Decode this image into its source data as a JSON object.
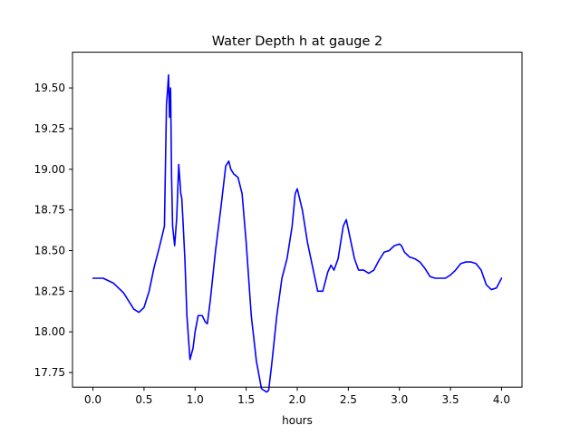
{
  "chart_data": {
    "type": "line",
    "title": "Water Depth h at gauge 2",
    "xlabel": "hours",
    "ylabel": "",
    "xlim": [
      -0.2,
      4.2
    ],
    "ylim": [
      17.66,
      19.72
    ],
    "xticks": [
      0.0,
      0.5,
      1.0,
      1.5,
      2.0,
      2.5,
      3.0,
      3.5,
      4.0
    ],
    "xtick_labels": [
      "0.0",
      "0.5",
      "1.0",
      "1.5",
      "2.0",
      "2.5",
      "3.0",
      "3.5",
      "4.0"
    ],
    "yticks": [
      17.75,
      18.0,
      18.25,
      18.5,
      18.75,
      19.0,
      19.25,
      19.5
    ],
    "ytick_labels": [
      "17.75",
      "18.00",
      "18.25",
      "18.50",
      "18.75",
      "19.00",
      "19.25",
      "19.50"
    ],
    "grid": false,
    "series": [
      {
        "color": "#0000ff",
        "x": [
          0.0,
          0.1,
          0.2,
          0.3,
          0.4,
          0.45,
          0.5,
          0.55,
          0.6,
          0.65,
          0.7,
          0.72,
          0.73,
          0.74,
          0.75,
          0.76,
          0.77,
          0.78,
          0.8,
          0.82,
          0.84,
          0.86,
          0.87,
          0.88,
          0.9,
          0.92,
          0.95,
          0.98,
          1.0,
          1.03,
          1.07,
          1.1,
          1.12,
          1.15,
          1.2,
          1.25,
          1.3,
          1.33,
          1.35,
          1.38,
          1.42,
          1.46,
          1.5,
          1.55,
          1.6,
          1.65,
          1.7,
          1.72,
          1.75,
          1.8,
          1.85,
          1.9,
          1.95,
          1.98,
          2.0,
          2.05,
          2.1,
          2.15,
          2.2,
          2.25,
          2.3,
          2.33,
          2.36,
          2.4,
          2.45,
          2.48,
          2.52,
          2.56,
          2.6,
          2.65,
          2.7,
          2.75,
          2.8,
          2.85,
          2.9,
          2.95,
          3.0,
          3.02,
          3.05,
          3.1,
          3.15,
          3.2,
          3.25,
          3.3,
          3.35,
          3.4,
          3.45,
          3.5,
          3.55,
          3.6,
          3.65,
          3.7,
          3.75,
          3.8,
          3.85,
          3.9,
          3.95,
          4.0
        ],
        "y": [
          18.33,
          18.33,
          18.3,
          18.24,
          18.14,
          18.12,
          18.15,
          18.25,
          18.4,
          18.52,
          18.65,
          19.4,
          19.48,
          19.58,
          19.32,
          19.5,
          18.95,
          18.65,
          18.53,
          18.7,
          19.03,
          18.85,
          18.82,
          18.7,
          18.45,
          18.1,
          17.83,
          17.9,
          18.0,
          18.1,
          18.1,
          18.06,
          18.05,
          18.2,
          18.5,
          18.75,
          19.02,
          19.05,
          19.0,
          18.97,
          18.95,
          18.85,
          18.55,
          18.1,
          17.82,
          17.65,
          17.63,
          17.64,
          17.8,
          18.1,
          18.33,
          18.45,
          18.65,
          18.85,
          18.88,
          18.75,
          18.55,
          18.4,
          18.25,
          18.25,
          18.37,
          18.41,
          18.38,
          18.45,
          18.65,
          18.69,
          18.57,
          18.45,
          18.38,
          18.38,
          18.36,
          18.38,
          18.44,
          18.49,
          18.5,
          18.53,
          18.54,
          18.53,
          18.49,
          18.46,
          18.45,
          18.43,
          18.39,
          18.34,
          18.33,
          18.33,
          18.33,
          18.35,
          18.38,
          18.42,
          18.43,
          18.43,
          18.42,
          18.38,
          18.29,
          18.26,
          18.27,
          18.33
        ]
      }
    ]
  }
}
